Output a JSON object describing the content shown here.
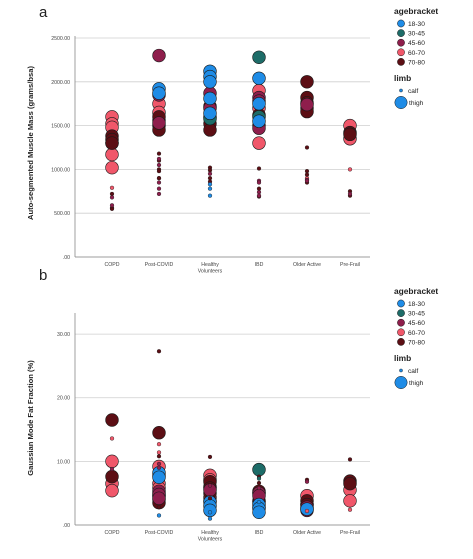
{
  "figure": {
    "panels": [
      "a",
      "b"
    ],
    "legend": {
      "age_title": "agebracket",
      "age_items": [
        {
          "label": "18-30",
          "color": "#1f8ce6"
        },
        {
          "label": "30-45",
          "color": "#1d6c68"
        },
        {
          "label": "45-60",
          "color": "#8e1e4c"
        },
        {
          "label": "60-70",
          "color": "#f0576a"
        },
        {
          "label": "70-80",
          "color": "#5c0e14"
        }
      ],
      "limb_title": "limb",
      "limb_items": [
        {
          "label": "calf",
          "size": "small"
        },
        {
          "label": "thigh",
          "size": "large"
        }
      ]
    }
  },
  "chart_data": [
    {
      "panel": "a",
      "type": "scatter",
      "ylabel": "Auto-segmented Muscle Mass (grams/bsa)",
      "xlabel": "",
      "ylim": [
        0,
        2500
      ],
      "yticks": [
        0,
        500,
        1000,
        1500,
        2000,
        2500
      ],
      "yticklabels": [
        ".00",
        "500.00",
        "1000.00",
        "1500.00",
        "2000.00",
        "2500.00"
      ],
      "categories": [
        "COPD",
        "Post-COVID",
        "Healthy Volunteers",
        "IBD",
        "Older Active",
        "Pre-Frail"
      ],
      "grid": "horizontal",
      "legend": "right",
      "series": [
        {
          "name": "60-70",
          "color": "#f0576a",
          "thigh": [
            [
              0,
              1600
            ],
            [
              0,
              1520
            ],
            [
              0,
              1480
            ],
            [
              0,
              1300
            ],
            [
              0,
              1170
            ],
            [
              0,
              1020
            ],
            [
              1,
              1750
            ],
            [
              1,
              1650
            ],
            [
              1,
              1560
            ],
            [
              3,
              1900
            ],
            [
              3,
              1700
            ],
            [
              3,
              1300
            ],
            [
              4,
              1700
            ],
            [
              5,
              1500
            ],
            [
              5,
              1350
            ],
            [
              2,
              1600
            ]
          ],
          "calf": [
            [
              0,
              790
            ],
            [
              5,
              1000
            ],
            [
              1,
              900
            ],
            [
              4,
              900
            ]
          ]
        },
        {
          "name": "70-80",
          "color": "#5c0e14",
          "thigh": [
            [
              0,
              1380
            ],
            [
              0,
              1340
            ],
            [
              0,
              1300
            ],
            [
              1,
              1600
            ],
            [
              1,
              1500
            ],
            [
              1,
              1450
            ],
            [
              2,
              1720
            ],
            [
              2,
              1520
            ],
            [
              2,
              1450
            ],
            [
              4,
              2000
            ],
            [
              4,
              1820
            ],
            [
              4,
              1760
            ],
            [
              4,
              1660
            ],
            [
              5,
              1420
            ],
            [
              5,
              1400
            ],
            [
              3,
              1620
            ]
          ],
          "calf": [
            [
              0,
              720
            ],
            [
              0,
              560
            ],
            [
              0,
              550
            ],
            [
              1,
              1180
            ],
            [
              1,
              1100
            ],
            [
              1,
              1000
            ],
            [
              1,
              980
            ],
            [
              1,
              900
            ],
            [
              2,
              1020
            ],
            [
              2,
              990
            ],
            [
              2,
              900
            ],
            [
              2,
              860
            ],
            [
              3,
              1010
            ],
            [
              3,
              780
            ],
            [
              3,
              690
            ],
            [
              4,
              1250
            ],
            [
              4,
              980
            ],
            [
              4,
              940
            ],
            [
              4,
              850
            ],
            [
              5,
              750
            ],
            [
              5,
              700
            ]
          ]
        },
        {
          "name": "45-60",
          "color": "#8e1e4c",
          "thigh": [
            [
              1,
              2300
            ],
            [
              1,
              1850
            ],
            [
              2,
              1870
            ],
            [
              2,
              1700
            ],
            [
              3,
              1820
            ],
            [
              3,
              1780
            ],
            [
              3,
              1500
            ],
            [
              3,
              1470
            ],
            [
              4,
              1740
            ],
            [
              1,
              1530
            ]
          ],
          "calf": [
            [
              1,
              1120
            ],
            [
              1,
              1050
            ],
            [
              1,
              850
            ],
            [
              1,
              780
            ],
            [
              1,
              720
            ],
            [
              2,
              950
            ],
            [
              3,
              870
            ],
            [
              3,
              850
            ],
            [
              3,
              740
            ],
            [
              3,
              700
            ],
            [
              0,
              680
            ],
            [
              0,
              590
            ],
            [
              5,
              720
            ],
            [
              4,
              880
            ],
            [
              4,
              870
            ]
          ]
        },
        {
          "name": "30-45",
          "color": "#1d6c68",
          "thigh": [
            [
              3,
              2280
            ],
            [
              3,
              1600
            ],
            [
              2,
              1580
            ]
          ],
          "calf": []
        },
        {
          "name": "18-30",
          "color": "#1f8ce6",
          "thigh": [
            [
              1,
              1920
            ],
            [
              1,
              1870
            ],
            [
              2,
              2120
            ],
            [
              2,
              2060
            ],
            [
              2,
              2000
            ],
            [
              2,
              1810
            ],
            [
              2,
              1640
            ],
            [
              3,
              2040
            ],
            [
              3,
              1750
            ],
            [
              3,
              1550
            ]
          ],
          "calf": [
            [
              2,
              830
            ],
            [
              2,
              780
            ],
            [
              2,
              700
            ]
          ]
        }
      ]
    },
    {
      "panel": "b",
      "type": "scatter",
      "ylabel": "Gaussian Mode Fat Fraction (%)",
      "xlabel": "",
      "ylim": [
        0,
        33
      ],
      "yticks": [
        0,
        10,
        20,
        30
      ],
      "yticklabels": [
        ".00",
        "10.00",
        "20.00",
        "30.00"
      ],
      "categories": [
        "COPD",
        "Post-COVID",
        "Healthy Volunteers",
        "IBD",
        "Older Active",
        "Pre-Frail"
      ],
      "grid": "horizontal",
      "legend": "right",
      "series": [
        {
          "name": "60-70",
          "color": "#f0576a",
          "thigh": [
            [
              0,
              10.0
            ],
            [
              0,
              6.5
            ],
            [
              0,
              5.4
            ],
            [
              1,
              9.2
            ],
            [
              1,
              7.8
            ],
            [
              1,
              6.5
            ],
            [
              1,
              5.8
            ],
            [
              1,
              4.6
            ],
            [
              1,
              4.0
            ],
            [
              2,
              7.8
            ],
            [
              2,
              7.1
            ],
            [
              2,
              6.0
            ],
            [
              2,
              4.3
            ],
            [
              3,
              5.0
            ],
            [
              3,
              3.8
            ],
            [
              3,
              2.8
            ],
            [
              4,
              4.6
            ],
            [
              4,
              3.2
            ],
            [
              5,
              5.5
            ],
            [
              5,
              3.8
            ]
          ],
          "calf": [
            [
              0,
              13.6
            ],
            [
              1,
              12.7
            ],
            [
              1,
              11.4
            ],
            [
              5,
              2.4
            ],
            [
              4,
              2.2
            ]
          ]
        },
        {
          "name": "70-80",
          "color": "#5c0e14",
          "thigh": [
            [
              0,
              16.5
            ],
            [
              0,
              7.6
            ],
            [
              1,
              14.5
            ],
            [
              1,
              5.0
            ],
            [
              1,
              4.5
            ],
            [
              2,
              6.8
            ],
            [
              2,
              5.8
            ],
            [
              2,
              5.0
            ],
            [
              2,
              3.8
            ],
            [
              3,
              5.3
            ],
            [
              3,
              3.6
            ],
            [
              4,
              3.8
            ],
            [
              4,
              3.2
            ],
            [
              4,
              2.6
            ],
            [
              5,
              6.9
            ],
            [
              5,
              6.5
            ],
            [
              1,
              3.5
            ]
          ],
          "calf": [
            [
              1,
              27.3
            ],
            [
              1,
              10.8
            ],
            [
              2,
              10.7
            ],
            [
              2,
              4.2
            ],
            [
              3,
              7.6
            ],
            [
              3,
              6.6
            ],
            [
              4,
              7.1
            ],
            [
              5,
              10.3
            ],
            [
              1,
              2.8
            ]
          ]
        },
        {
          "name": "45-60",
          "color": "#8e1e4c",
          "thigh": [
            [
              1,
              5.3
            ],
            [
              1,
              4.8
            ],
            [
              1,
              4.2
            ],
            [
              2,
              5.5
            ],
            [
              3,
              5.0
            ],
            [
              3,
              4.6
            ],
            [
              4,
              2.8
            ],
            [
              4,
              2.3
            ]
          ],
          "calf": [
            [
              1,
              9.6
            ],
            [
              1,
              9.0
            ],
            [
              2,
              6.2
            ],
            [
              3,
              5.8
            ],
            [
              4,
              6.8
            ],
            [
              0,
              8.8
            ]
          ]
        },
        {
          "name": "30-45",
          "color": "#1d6c68",
          "thigh": [
            [
              3,
              8.7
            ]
          ],
          "calf": [
            [
              3,
              7.3
            ]
          ]
        },
        {
          "name": "18-30",
          "color": "#1f8ce6",
          "thigh": [
            [
              1,
              8.2
            ],
            [
              1,
              7.5
            ],
            [
              2,
              3.6
            ],
            [
              2,
              3.0
            ],
            [
              2,
              2.3
            ],
            [
              3,
              3.2
            ],
            [
              3,
              2.6
            ],
            [
              3,
              2.0
            ],
            [
              4,
              2.5
            ]
          ],
          "calf": [
            [
              2,
              2.0
            ],
            [
              2,
              1.0
            ],
            [
              3,
              3.6
            ],
            [
              1,
              1.5
            ]
          ]
        }
      ]
    }
  ]
}
